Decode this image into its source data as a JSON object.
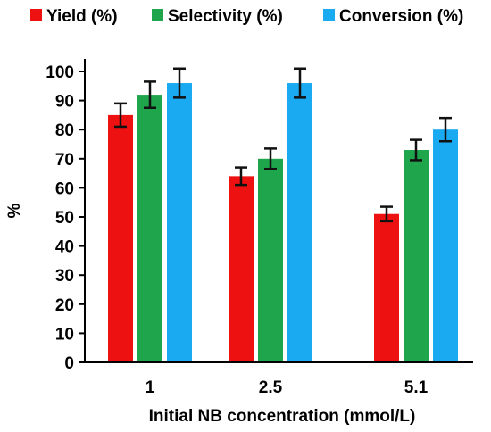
{
  "chart_data": {
    "type": "bar",
    "categories": [
      "1",
      "2.5",
      "5.1"
    ],
    "series": [
      {
        "name": "Yield (%)",
        "color": "#ee1111",
        "values": [
          85,
          64,
          51
        ],
        "errors": [
          4,
          3,
          2.5
        ]
      },
      {
        "name": "Selectivity (%)",
        "color": "#1fa64c",
        "values": [
          92,
          70,
          73
        ],
        "errors": [
          4.5,
          3.5,
          3.5
        ]
      },
      {
        "name": "Conversion (%)",
        "color": "#1aaaf2",
        "values": [
          96,
          96,
          80
        ],
        "errors": [
          5,
          5,
          4
        ]
      }
    ],
    "xlabel": "Initial NB concentration (mmol/L)",
    "ylabel": "%",
    "ylim": [
      0,
      100
    ],
    "yticks": [
      "0",
      "10",
      "20",
      "30",
      "40",
      "50",
      "60",
      "70",
      "80",
      "90",
      "100"
    ],
    "grid": false,
    "legend_position": "top"
  }
}
